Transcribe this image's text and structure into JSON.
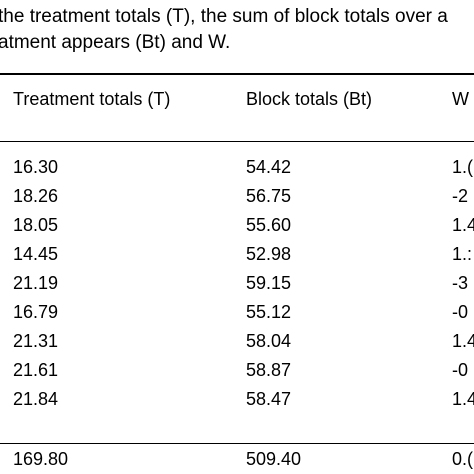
{
  "caption": {
    "line1": "the treatment totals (T), the sum of block totals over a",
    "line2": "atment appears (Bt) and W."
  },
  "table": {
    "headers": [
      "Treatment totals (T)",
      "Block totals (Bt)",
      "W"
    ],
    "rows": [
      {
        "t": "16.30",
        "bt": "54.42",
        "w": "1.("
      },
      {
        "t": "18.26",
        "bt": "56.75",
        "w": "-2"
      },
      {
        "t": "18.05",
        "bt": "55.60",
        "w": "1.4"
      },
      {
        "t": "14.45",
        "bt": "52.98",
        "w": "1.:"
      },
      {
        "t": "21.19",
        "bt": "59.15",
        "w": "-3"
      },
      {
        "t": "16.79",
        "bt": "55.12",
        "w": "-0"
      },
      {
        "t": "21.31",
        "bt": "58.04",
        "w": "1.4"
      },
      {
        "t": "21.61",
        "bt": "58.87",
        "w": "-0"
      },
      {
        "t": "21.84",
        "bt": "58.47",
        "w": "1.4"
      }
    ],
    "total": {
      "t": "169.80",
      "bt": "509.40",
      "w": "0.("
    }
  }
}
